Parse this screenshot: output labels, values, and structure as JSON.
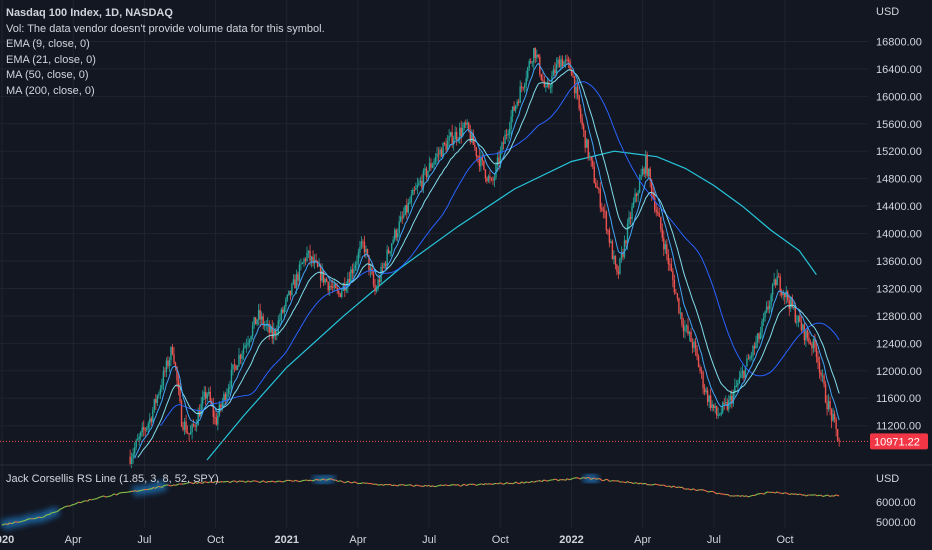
{
  "legend": {
    "title": "Nasdaq 100 Index, 1D, NASDAQ",
    "vol": "Vol: The data vendor doesn't provide volume data for this symbol.",
    "ema9": "EMA (9, close, 0)",
    "ema21": "EMA (21, close, 0)",
    "ma50": "MA (50, close, 0)",
    "ma200": "MA (200, close, 0)"
  },
  "rs_label": "Jack Corsellis RS Line (1.85, 3, 8, 52, SPY)",
  "colors": {
    "background": "#131722",
    "grid": "#1f2430",
    "up": "#26a69a",
    "down": "#ef5350",
    "ema9": "#42a5f5",
    "ema21": "#80deea",
    "ma50": "#2962ff",
    "ma200": "#26c6da",
    "price_tag": "#f23645",
    "rs_glow": "#2196f3"
  },
  "chart_data": [
    {
      "type": "candlestick",
      "currency": "USD",
      "y_ticks": [
        "16800.00",
        "16400.00",
        "16000.00",
        "15600.00",
        "15200.00",
        "14800.00",
        "14400.00",
        "14000.00",
        "13600.00",
        "13200.00",
        "12800.00",
        "12400.00",
        "12000.00",
        "11600.00",
        "11200.00"
      ],
      "ylim": [
        10700,
        17200
      ],
      "last_price": "10971.22",
      "x_ticks": [
        {
          "label": "2020",
          "bold": true,
          "x": 7.0
        },
        {
          "label": "Apr",
          "bold": false,
          "x": 7.25
        },
        {
          "label": "Jul",
          "bold": false,
          "x": 7.5
        },
        {
          "label": "Oct",
          "bold": false,
          "x": 7.75
        },
        {
          "label": "2021",
          "bold": true,
          "x": 8.0
        },
        {
          "label": "Apr",
          "bold": false,
          "x": 8.25
        },
        {
          "label": "Jul",
          "bold": false,
          "x": 8.5
        },
        {
          "label": "Oct",
          "bold": false,
          "x": 8.75
        },
        {
          "label": "2022",
          "bold": true,
          "x": 9.0
        },
        {
          "label": "Apr",
          "bold": false,
          "x": 9.25
        },
        {
          "label": "Jul",
          "bold": false,
          "x": 9.5
        },
        {
          "label": "Oct",
          "bold": false,
          "x": 9.75
        }
      ],
      "price_path": [
        [
          7.45,
          10750
        ],
        [
          7.52,
          11300
        ],
        [
          7.6,
          12350
        ],
        [
          7.63,
          11300
        ],
        [
          7.66,
          11050
        ],
        [
          7.72,
          11700
        ],
        [
          7.75,
          11250
        ],
        [
          7.82,
          12100
        ],
        [
          7.9,
          12800
        ],
        [
          7.95,
          12500
        ],
        [
          8.02,
          13200
        ],
        [
          8.07,
          13700
        ],
        [
          8.12,
          13400
        ],
        [
          8.18,
          13100
        ],
        [
          8.22,
          13400
        ],
        [
          8.27,
          13850
        ],
        [
          8.31,
          13150
        ],
        [
          8.37,
          13900
        ],
        [
          8.45,
          14600
        ],
        [
          8.52,
          15100
        ],
        [
          8.58,
          15400
        ],
        [
          8.63,
          15550
        ],
        [
          8.68,
          15050
        ],
        [
          8.72,
          14700
        ],
        [
          8.78,
          15600
        ],
        [
          8.83,
          16200
        ],
        [
          8.87,
          16700
        ],
        [
          8.91,
          16050
        ],
        [
          8.96,
          16550
        ],
        [
          9.0,
          16400
        ],
        [
          9.04,
          15500
        ],
        [
          9.08,
          14800
        ],
        [
          9.12,
          14200
        ],
        [
          9.16,
          13350
        ],
        [
          9.21,
          14300
        ],
        [
          9.26,
          15050
        ],
        [
          9.3,
          14300
        ],
        [
          9.34,
          13600
        ],
        [
          9.39,
          12700
        ],
        [
          9.43,
          12350
        ],
        [
          9.47,
          11700
        ],
        [
          9.51,
          11350
        ],
        [
          9.55,
          11500
        ],
        [
          9.6,
          11950
        ],
        [
          9.66,
          12500
        ],
        [
          9.72,
          13350
        ],
        [
          9.76,
          13050
        ],
        [
          9.81,
          12600
        ],
        [
          9.86,
          12300
        ],
        [
          9.89,
          11650
        ],
        [
          9.92,
          11250
        ],
        [
          9.94,
          10971
        ]
      ],
      "ma200": [
        [
          7.72,
          10700
        ],
        [
          7.85,
          11350
        ],
        [
          8.0,
          12050
        ],
        [
          8.2,
          12800
        ],
        [
          8.4,
          13500
        ],
        [
          8.6,
          14100
        ],
        [
          8.8,
          14650
        ],
        [
          9.0,
          15050
        ],
        [
          9.15,
          15200
        ],
        [
          9.3,
          15120
        ],
        [
          9.4,
          14950
        ],
        [
          9.5,
          14700
        ],
        [
          9.6,
          14400
        ],
        [
          9.7,
          14050
        ],
        [
          9.8,
          13750
        ],
        [
          9.86,
          13400
        ]
      ]
    },
    {
      "type": "line",
      "name": "Jack Corsellis RS Line (1.85, 3, 8, 52, SPY)",
      "currency": "USD",
      "y_ticks": [
        "6000.00",
        "5000.00"
      ],
      "ylim": [
        4700,
        7700
      ],
      "glow_x": [
        [
          7.0,
          7.2
        ],
        [
          7.46,
          7.58
        ],
        [
          8.09,
          8.17
        ],
        [
          9.04,
          9.1
        ]
      ],
      "rs_path": [
        [
          7.0,
          4850
        ],
        [
          7.15,
          5300
        ],
        [
          7.25,
          5900
        ],
        [
          7.35,
          6250
        ],
        [
          7.45,
          6500
        ],
        [
          7.55,
          6750
        ],
        [
          7.65,
          6950
        ],
        [
          7.75,
          7000
        ],
        [
          7.9,
          7020
        ],
        [
          8.05,
          7060
        ],
        [
          8.15,
          7130
        ],
        [
          8.2,
          7000
        ],
        [
          8.35,
          6850
        ],
        [
          8.5,
          6800
        ],
        [
          8.65,
          6850
        ],
        [
          8.8,
          6950
        ],
        [
          8.95,
          7100
        ],
        [
          9.05,
          7200
        ],
        [
          9.15,
          7050
        ],
        [
          9.3,
          6850
        ],
        [
          9.45,
          6600
        ],
        [
          9.55,
          6350
        ],
        [
          9.62,
          6280
        ],
        [
          9.7,
          6500
        ],
        [
          9.8,
          6350
        ],
        [
          9.94,
          6300
        ]
      ]
    }
  ]
}
